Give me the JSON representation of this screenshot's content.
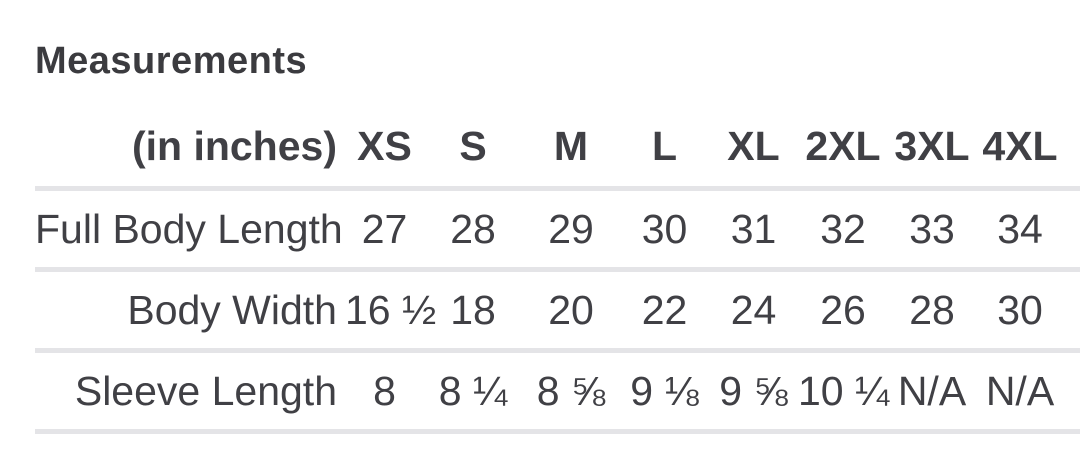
{
  "colors": {
    "background": "#ffffff",
    "text": "#404045",
    "title_text": "#3b3b3f",
    "divider": "#e4e4e7"
  },
  "chart_data": {
    "type": "table",
    "title": "Measurements",
    "corner_label": "(in inches)",
    "unit": "inches",
    "columns": [
      "XS",
      "S",
      "M",
      "L",
      "XL",
      "2XL",
      "3XL",
      "4XL"
    ],
    "rows": [
      {
        "label": "Full Body Length",
        "values": [
          "27",
          "28",
          "29",
          "30",
          "31",
          "32",
          "33",
          "34"
        ]
      },
      {
        "label": "Body Width",
        "values": [
          "16 ½",
          "18",
          "20",
          "22",
          "24",
          "26",
          "28",
          "30"
        ]
      },
      {
        "label": "Sleeve Length",
        "values": [
          "8",
          "8 ¼",
          "8 ⅝",
          "9 ⅛",
          "9 ⅝",
          "10 ¼",
          "N/A",
          "N/A"
        ]
      }
    ]
  }
}
